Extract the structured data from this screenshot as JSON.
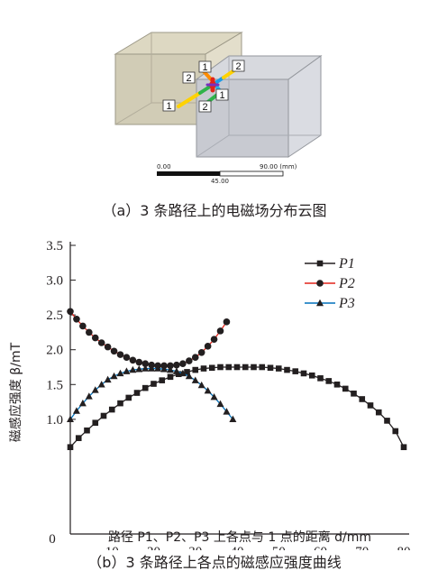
{
  "figure_a": {
    "caption": "（a）3 条路径上的电磁场分布云图",
    "point_labels": [
      "1",
      "2",
      "1",
      "2",
      "1",
      "2"
    ],
    "scale_bar": {
      "left": "0.00",
      "mid": "45.00",
      "right": "90.00 (mm)"
    }
  },
  "figure_b": {
    "caption": "（b）3 条路径上各点的磁感应强度曲线"
  },
  "chart_data": {
    "type": "line",
    "xlabel": "路径 P1、P2、P3 上各点与 1 点的距离 d/mm",
    "ylabel": "磁感应强度 β/mT",
    "xlim": [
      0,
      80
    ],
    "ylim": [
      0,
      3.5
    ],
    "xticks": [
      "10",
      "20",
      "30",
      "40",
      "50",
      "60",
      "70",
      "80"
    ],
    "yticks": [
      "1.0",
      "1.5",
      "2.0",
      "2.5",
      "3.0",
      "3.5"
    ],
    "origin_label": "0",
    "legend_position": "top-right",
    "series": [
      {
        "name": "P1",
        "color": "#231f20",
        "marker": "square",
        "x": [
          0,
          2,
          4,
          6,
          8,
          10,
          12,
          14,
          16,
          18,
          20,
          22,
          24,
          26,
          28,
          30,
          32,
          34,
          36,
          38,
          40,
          42,
          44,
          46,
          48,
          50,
          52,
          54,
          56,
          58,
          60,
          62,
          64,
          66,
          68,
          70,
          72,
          74,
          76,
          78,
          80
        ],
        "y": [
          0.6,
          0.73,
          0.84,
          0.95,
          1.05,
          1.14,
          1.23,
          1.31,
          1.38,
          1.45,
          1.51,
          1.56,
          1.61,
          1.65,
          1.68,
          1.71,
          1.73,
          1.74,
          1.75,
          1.75,
          1.75,
          1.75,
          1.75,
          1.75,
          1.74,
          1.73,
          1.71,
          1.69,
          1.66,
          1.63,
          1.59,
          1.55,
          1.5,
          1.44,
          1.37,
          1.29,
          1.2,
          1.1,
          0.98,
          0.83,
          0.6
        ]
      },
      {
        "name": "P2",
        "color": "#e2231a",
        "marker": "circle",
        "x": [
          0,
          1.5,
          3,
          4.5,
          6,
          7.5,
          9,
          10.5,
          12,
          13.5,
          15,
          16.5,
          18,
          19.5,
          21,
          22.5,
          24,
          25.5,
          27,
          28.5,
          30,
          31.5,
          33,
          34.5,
          36,
          37.5
        ],
        "y": [
          2.55,
          2.44,
          2.34,
          2.25,
          2.17,
          2.1,
          2.04,
          1.98,
          1.93,
          1.89,
          1.85,
          1.82,
          1.8,
          1.78,
          1.77,
          1.77,
          1.77,
          1.78,
          1.8,
          1.84,
          1.89,
          1.96,
          2.05,
          2.15,
          2.27,
          2.4
        ]
      },
      {
        "name": "P3",
        "color": "#0071bc",
        "marker": "triangle",
        "x": [
          0,
          1.5,
          3,
          4.5,
          6,
          7.5,
          9,
          10.5,
          12,
          13.5,
          15,
          16.5,
          18,
          19.5,
          21,
          22.5,
          24,
          25.5,
          27,
          28.5,
          30,
          31.5,
          33,
          34.5,
          36,
          37.5,
          39
        ],
        "y": [
          1.0,
          1.12,
          1.23,
          1.33,
          1.42,
          1.5,
          1.57,
          1.62,
          1.66,
          1.69,
          1.71,
          1.72,
          1.73,
          1.73,
          1.73,
          1.72,
          1.71,
          1.69,
          1.66,
          1.62,
          1.56,
          1.49,
          1.41,
          1.32,
          1.22,
          1.11,
          1.0
        ]
      }
    ]
  }
}
